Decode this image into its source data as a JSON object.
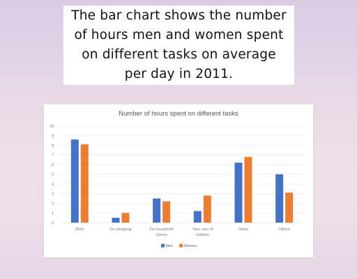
{
  "caption": {
    "text": "The bar chart shows the number\nof hours men and women spent\non different tasks on average\nper day in 2011."
  },
  "colors": {
    "men": "#4472c4",
    "women": "#ed7d31",
    "grid": "#e4e4e4"
  },
  "chart_data": {
    "type": "bar",
    "title": "Number of hours spent on different tasks",
    "xlabel": "",
    "ylabel": "",
    "ylim": [
      0,
      10
    ],
    "yticks": [
      0,
      1,
      2,
      3,
      4,
      5,
      6,
      7,
      8,
      9,
      10
    ],
    "categories": [
      [
        "Work"
      ],
      [
        "Go shopping"
      ],
      [
        "Do household",
        "chores"
      ],
      [
        "Take care of",
        "children"
      ],
      [
        "Sleep"
      ],
      [
        "Others"
      ]
    ],
    "series": [
      {
        "name": "Men",
        "values": [
          8.6,
          0.5,
          2.5,
          1.2,
          6.2,
          5.0
        ]
      },
      {
        "name": "Women",
        "values": [
          8.1,
          1.0,
          2.2,
          2.8,
          6.8,
          3.1
        ]
      }
    ],
    "grid": true,
    "legend": "bottom"
  }
}
